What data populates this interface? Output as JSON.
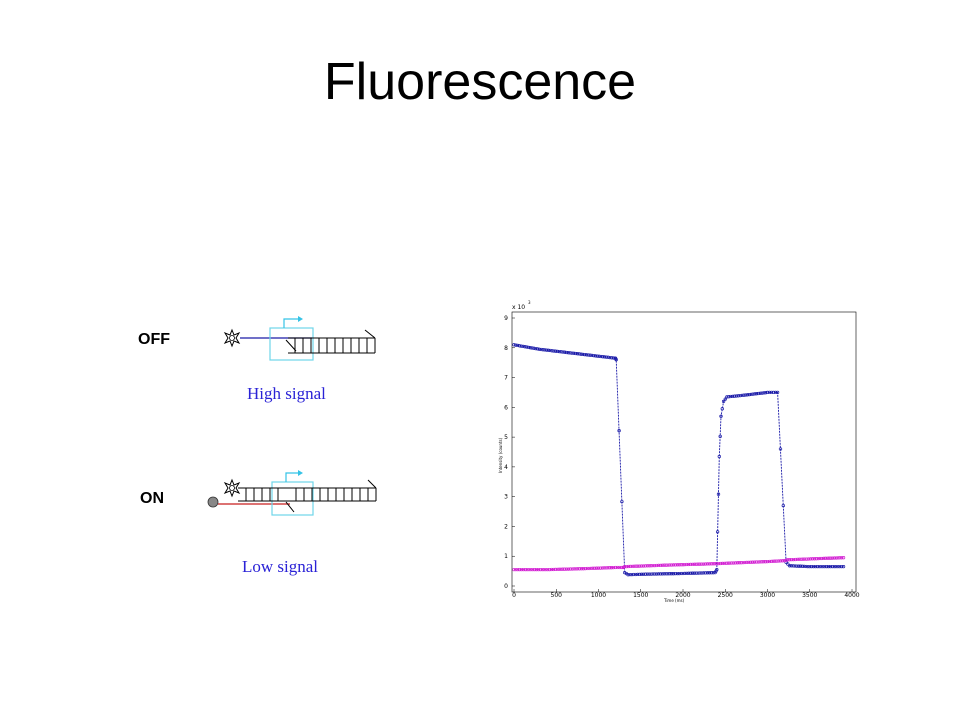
{
  "title": "Fluorescence",
  "states": [
    {
      "label": "OFF",
      "signal": "High signal"
    },
    {
      "label": "ON",
      "signal": "Low signal"
    }
  ],
  "colors": {
    "signal_text": "#2a22d6",
    "series_blue": "#1a1aa8",
    "series_magenta": "#d21fd2",
    "quencher_strand": "#c81e1e"
  },
  "chart_data": {
    "type": "scatter",
    "exponent_label": "x 10",
    "exponent_power": "3",
    "xlabel": "Time (ms)",
    "ylabel": "Intensity (counts)",
    "xlim": [
      0,
      4000
    ],
    "ylim": [
      0,
      9
    ],
    "xticks": [
      0,
      500,
      1000,
      1500,
      2000,
      2500,
      3000,
      3500,
      4000
    ],
    "yticks": [
      0,
      1,
      2,
      3,
      4,
      5,
      6,
      7,
      8,
      9
    ],
    "series": [
      {
        "color": "#1a1aa8",
        "points": [
          [
            0,
            8.1
          ],
          [
            300,
            7.95
          ],
          [
            600,
            7.85
          ],
          [
            900,
            7.75
          ],
          [
            1200,
            7.65
          ],
          [
            1210,
            7.6
          ],
          [
            1310,
            0.45
          ],
          [
            1350,
            0.38
          ],
          [
            1600,
            0.4
          ],
          [
            2000,
            0.42
          ],
          [
            2380,
            0.45
          ],
          [
            2400,
            0.55
          ],
          [
            2430,
            4.35
          ],
          [
            2450,
            5.7
          ],
          [
            2480,
            6.2
          ],
          [
            2520,
            6.35
          ],
          [
            2700,
            6.4
          ],
          [
            3000,
            6.5
          ],
          [
            3120,
            6.5
          ],
          [
            3220,
            0.8
          ],
          [
            3260,
            0.68
          ],
          [
            3500,
            0.65
          ],
          [
            3900,
            0.65
          ]
        ]
      },
      {
        "color": "#d21fd2",
        "points": [
          [
            0,
            0.55
          ],
          [
            400,
            0.55
          ],
          [
            800,
            0.58
          ],
          [
            1200,
            0.62
          ],
          [
            1290,
            0.62
          ],
          [
            1310,
            0.65
          ],
          [
            1800,
            0.7
          ],
          [
            2400,
            0.75
          ],
          [
            3000,
            0.82
          ],
          [
            3200,
            0.85
          ],
          [
            3240,
            0.88
          ],
          [
            3600,
            0.92
          ],
          [
            3900,
            0.95
          ]
        ]
      }
    ]
  }
}
